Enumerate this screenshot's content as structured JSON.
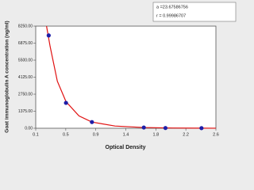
{
  "chart_data": {
    "type": "scatter",
    "ylabel": "Goat immunoglobulin A concentration (ng/ml)",
    "xlabel": "Optical Density",
    "xlim": [
      0.1,
      2.6
    ],
    "ylim": [
      0,
      8250
    ],
    "xticks": [
      {
        "value": 0.1,
        "label": "0.1"
      },
      {
        "value": 0.517,
        "label": "0.5"
      },
      {
        "value": 0.933,
        "label": "0.9"
      },
      {
        "value": 1.35,
        "label": "1.4"
      },
      {
        "value": 1.767,
        "label": "1.8"
      },
      {
        "value": 2.183,
        "label": "2.2"
      },
      {
        "value": 2.6,
        "label": "2.6"
      }
    ],
    "yticks": [
      {
        "value": 0,
        "label": "0.00"
      },
      {
        "value": 1375,
        "label": "1375.00"
      },
      {
        "value": 2750,
        "label": "2750.00"
      },
      {
        "value": 4125,
        "label": "4125.00"
      },
      {
        "value": 5500,
        "label": "5500.00"
      },
      {
        "value": 6875,
        "label": "6875.00"
      },
      {
        "value": 8250,
        "label": "8250.00"
      }
    ],
    "points": {
      "color": "#1e1ea8",
      "x": [
        0.28,
        0.52,
        0.88,
        1.6,
        1.9,
        2.4
      ],
      "values": [
        7500,
        2050,
        500,
        60,
        20,
        10
      ]
    },
    "curve": {
      "color": "#e01010",
      "x": [
        0.25,
        0.3,
        0.4,
        0.52,
        0.7,
        0.88,
        1.2,
        1.6,
        2.0,
        2.6
      ],
      "values": [
        8250,
        6600,
        3800,
        2150,
        1000,
        500,
        180,
        60,
        20,
        5
      ]
    },
    "annotations": [
      "a =23.67586756",
      "r = 0.99986707"
    ]
  }
}
